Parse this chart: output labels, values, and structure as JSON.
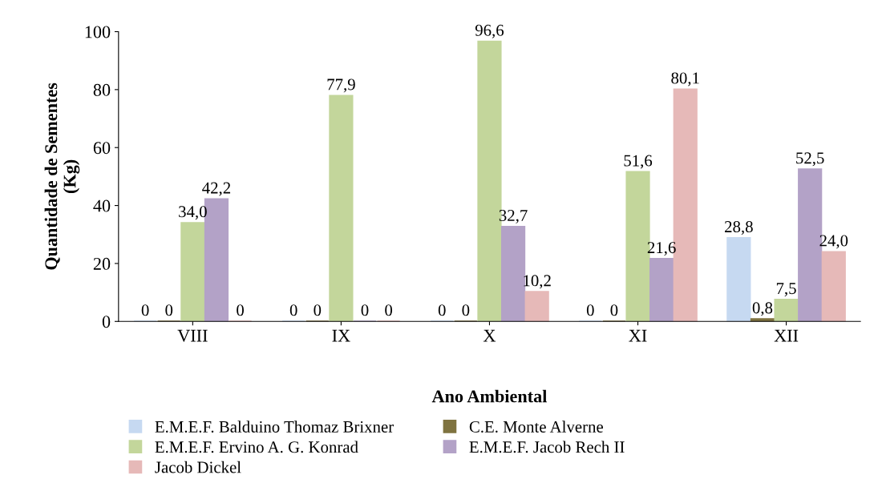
{
  "chart_data": {
    "type": "bar",
    "xlabel": "Ano Ambiental",
    "ylabel": "Quantidade de Sementes\n(Kg)",
    "categories": [
      "VIII",
      "IX",
      "X",
      "XI",
      "XII"
    ],
    "ylim": [
      0,
      100
    ],
    "yticks": [
      0,
      20,
      40,
      60,
      80,
      100
    ],
    "grid": false,
    "legend": "bottom",
    "series": [
      {
        "name": "E.M.E.F. Balduino Thomaz Brixner",
        "color": "#c6d9f1",
        "values": [
          0,
          0,
          0,
          0,
          28.8
        ],
        "value_labels": [
          "0",
          "0",
          "0",
          "0",
          "28,8"
        ]
      },
      {
        "name": "C.E. Monte Alverne",
        "color": "#7f7340",
        "values": [
          0,
          0,
          0,
          0,
          0.8
        ],
        "value_labels": [
          "0",
          "0",
          "0",
          "0",
          "0,8"
        ]
      },
      {
        "name": "E.M.E.F. Ervino A. G. Konrad",
        "color": "#c3d69b",
        "values": [
          34.0,
          77.9,
          96.6,
          51.6,
          7.5
        ],
        "value_labels": [
          "34,0",
          "77,9",
          "96,6",
          "51,6",
          "7,5"
        ]
      },
      {
        "name": "E.M.E.F. Jacob Rech II",
        "color": "#b3a2c7",
        "values": [
          42.2,
          0,
          32.7,
          21.6,
          52.5
        ],
        "value_labels": [
          "42,2",
          "0",
          "32,7",
          "21,6",
          "52,5"
        ]
      },
      {
        "name": "Jacob Dickel",
        "color": "#e6b9b8",
        "values": [
          0,
          0,
          10.2,
          80.1,
          24.0
        ],
        "value_labels": [
          "0",
          "0",
          "10,2",
          "80,1",
          "24,0"
        ]
      }
    ]
  }
}
